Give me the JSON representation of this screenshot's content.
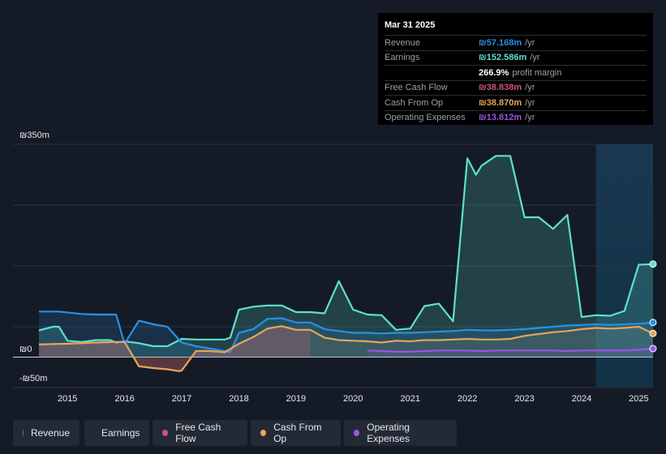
{
  "tooltip": {
    "date": "Mar 31 2025",
    "rows": [
      {
        "label": "Revenue",
        "value": "₪57.168m",
        "unit": "/yr",
        "color": "#2b8fe6"
      },
      {
        "label": "Earnings",
        "value": "₪152.586m",
        "unit": "/yr",
        "color": "#5ee0cc"
      },
      {
        "label": "",
        "value": "266.9%",
        "unit": "profit margin",
        "color": "#ffffff"
      },
      {
        "label": "Free Cash Flow",
        "value": "₪38.838m",
        "unit": "/yr",
        "color": "#d0527c"
      },
      {
        "label": "Cash From Op",
        "value": "₪38.870m",
        "unit": "/yr",
        "color": "#e6a55a"
      },
      {
        "label": "Operating Expenses",
        "value": "₪13.812m",
        "unit": "/yr",
        "color": "#9b55e6"
      }
    ]
  },
  "legend": [
    {
      "label": "Revenue",
      "color": "#2b8fe6"
    },
    {
      "label": "Earnings",
      "color": "#5ee0cc"
    },
    {
      "label": "Free Cash Flow",
      "color": "#d0527c"
    },
    {
      "label": "Cash From Op",
      "color": "#e6a55a"
    },
    {
      "label": "Operating Expenses",
      "color": "#9b55e6"
    }
  ],
  "chart_data": {
    "type": "line",
    "y_unit": "₪m",
    "ylim": [
      -50,
      350
    ],
    "ytick_labels": [
      "₪350m",
      "₪0",
      "-₪50m"
    ],
    "xlim": [
      2014.5,
      2025.25
    ],
    "xtick_values": [
      2015,
      2016,
      2017,
      2018,
      2019,
      2020,
      2021,
      2022,
      2023,
      2024,
      2025
    ],
    "xtick_labels": [
      "2015",
      "2016",
      "2017",
      "2018",
      "2019",
      "2020",
      "2021",
      "2022",
      "2023",
      "2024",
      "2025"
    ],
    "highlight_from": 2024.25,
    "series": [
      {
        "name": "Revenue",
        "color": "#2b8fe6",
        "x": [
          2014.5,
          2014.85,
          2015.25,
          2015.5,
          2015.75,
          2015.85,
          2016.0,
          2016.25,
          2016.5,
          2016.75,
          2017.0,
          2017.25,
          2017.5,
          2017.75,
          2017.85,
          2018.0,
          2018.25,
          2018.5,
          2018.75,
          2019.0,
          2019.25,
          2019.5,
          2019.75,
          2020.0,
          2020.25,
          2020.5,
          2020.75,
          2021.0,
          2021.25,
          2021.5,
          2021.75,
          2022.0,
          2022.25,
          2022.5,
          2022.75,
          2023.0,
          2023.25,
          2023.5,
          2023.75,
          2024.0,
          2024.25,
          2024.5,
          2024.75,
          2025.0,
          2025.25
        ],
        "values": [
          75,
          75,
          71,
          70,
          70,
          70,
          22,
          60,
          54,
          50,
          24,
          18,
          14,
          10,
          8,
          40,
          46,
          63,
          64,
          57,
          57,
          46,
          43,
          40,
          40,
          39,
          40,
          40,
          41,
          42,
          43,
          45,
          44,
          44,
          45,
          46,
          48,
          50,
          52,
          53,
          54,
          53,
          54,
          55,
          57
        ]
      },
      {
        "name": "Earnings",
        "color": "#5ee0cc",
        "x": [
          2014.5,
          2014.75,
          2014.85,
          2015.0,
          2015.25,
          2015.5,
          2015.75,
          2015.85,
          2016.0,
          2016.25,
          2016.5,
          2016.75,
          2017.0,
          2017.25,
          2017.5,
          2017.75,
          2017.85,
          2018.0,
          2018.25,
          2018.5,
          2018.75,
          2019.0,
          2019.25,
          2019.5,
          2019.75,
          2020.0,
          2020.25,
          2020.5,
          2020.75,
          2021.0,
          2021.25,
          2021.5,
          2021.75,
          2022.0,
          2022.15,
          2022.25,
          2022.5,
          2022.75,
          2023.0,
          2023.25,
          2023.5,
          2023.75,
          2024.0,
          2024.25,
          2024.5,
          2024.75,
          2025.0,
          2025.25
        ],
        "values": [
          44,
          50,
          50,
          27,
          25,
          28,
          28,
          24,
          26,
          23,
          18,
          18,
          30,
          29,
          29,
          29,
          32,
          78,
          83,
          85,
          85,
          74,
          74,
          72,
          125,
          78,
          70,
          69,
          45,
          47,
          84,
          88,
          59,
          327,
          300,
          315,
          331,
          331,
          230,
          230,
          211,
          234,
          66,
          69,
          68,
          76,
          152,
          153
        ]
      },
      {
        "name": "Free Cash Flow",
        "color": "#d0527c",
        "x": [
          2014.5,
          2015.0,
          2015.5,
          2015.85,
          2016.0,
          2016.25,
          2016.5,
          2016.75,
          2016.95,
          2017.0,
          2017.25,
          2017.5,
          2017.75,
          2018.0,
          2018.25,
          2018.5,
          2018.75,
          2019.0,
          2019.25
        ],
        "values": [
          21,
          22,
          24,
          25,
          25,
          -15,
          -18,
          -20,
          -23,
          -22,
          10,
          10,
          8,
          22,
          33,
          47,
          51,
          45,
          45
        ]
      },
      {
        "name": "Cash From Op",
        "color": "#e6a55a",
        "x": [
          2014.5,
          2015.0,
          2015.5,
          2015.85,
          2016.0,
          2016.25,
          2016.5,
          2016.75,
          2016.95,
          2017.0,
          2017.25,
          2017.5,
          2017.75,
          2018.0,
          2018.25,
          2018.5,
          2018.75,
          2019.0,
          2019.25,
          2019.5,
          2019.75,
          2020.0,
          2020.25,
          2020.5,
          2020.75,
          2021.0,
          2021.25,
          2021.5,
          2021.75,
          2022.0,
          2022.25,
          2022.5,
          2022.75,
          2023.0,
          2023.25,
          2023.5,
          2023.75,
          2024.0,
          2024.25,
          2024.5,
          2024.75,
          2025.0,
          2025.25
        ],
        "values": [
          21,
          22,
          24,
          25,
          25,
          -15,
          -18,
          -20,
          -23,
          -22,
          10,
          10,
          8,
          22,
          33,
          47,
          51,
          45,
          45,
          32,
          28,
          27,
          26,
          24,
          27,
          26,
          28,
          28,
          29,
          30,
          29,
          29,
          30,
          35,
          38,
          41,
          43,
          46,
          48,
          47,
          48,
          50,
          39
        ]
      },
      {
        "name": "Operating Expenses",
        "color": "#9b55e6",
        "x": [
          2020.25,
          2020.5,
          2020.75,
          2021.0,
          2021.25,
          2021.5,
          2021.75,
          2022.0,
          2022.25,
          2022.5,
          2022.75,
          2023.0,
          2023.25,
          2023.5,
          2023.75,
          2024.0,
          2024.25,
          2024.5,
          2024.75,
          2025.0,
          2025.25
        ],
        "values": [
          11,
          10,
          9,
          9,
          10,
          11,
          11,
          11,
          10,
          11,
          11,
          11,
          11,
          11,
          10,
          11,
          11,
          11,
          11,
          12,
          14
        ]
      }
    ]
  }
}
